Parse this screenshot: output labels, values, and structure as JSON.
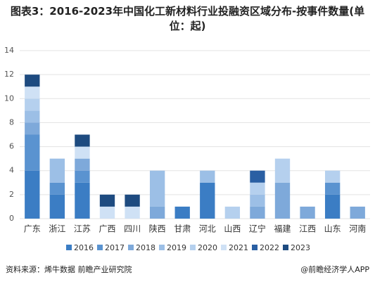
{
  "chart_data": {
    "type": "stacked_bar",
    "title": "图表3：2016-2023年中国化工新材料行业投融资区域分布-按事件数量(单位：起)",
    "source": "资料来源：烯牛数据 前瞻产业研究院",
    "credit": "@前瞻经济学人APP",
    "categories": [
      "广东",
      "浙江",
      "江苏",
      "广西",
      "四川",
      "陕西",
      "甘肃",
      "河北",
      "山西",
      "辽宁",
      "福建",
      "江西",
      "山东",
      "河南"
    ],
    "series": [
      {
        "name": "2016",
        "color": "#3b7dc4",
        "values": [
          4,
          2,
          3,
          0,
          0,
          0,
          1,
          3,
          0,
          0,
          0,
          0,
          2,
          0
        ]
      },
      {
        "name": "2017",
        "color": "#5a93d0",
        "values": [
          3,
          1,
          1,
          0,
          0,
          0,
          0,
          0,
          0,
          0,
          0,
          0,
          1,
          0
        ]
      },
      {
        "name": "2018",
        "color": "#7ea9da",
        "values": [
          1,
          0,
          1,
          0,
          0,
          1,
          0,
          0,
          0,
          1,
          3,
          1,
          0,
          1
        ]
      },
      {
        "name": "2019",
        "color": "#9cbfe6",
        "values": [
          1,
          2,
          0,
          0,
          0,
          3,
          0,
          1,
          0,
          1,
          0,
          0,
          0,
          0
        ]
      },
      {
        "name": "2020",
        "color": "#b5d0ee",
        "values": [
          1,
          0,
          0,
          0,
          0,
          0,
          0,
          0,
          1,
          1,
          2,
          0,
          1,
          0
        ]
      },
      {
        "name": "2021",
        "color": "#cfe1f5",
        "values": [
          1,
          0,
          1,
          1,
          1,
          0,
          0,
          0,
          0,
          0,
          0,
          0,
          0,
          0
        ]
      },
      {
        "name": "2022",
        "color": "#2a5fa3",
        "values": [
          0,
          0,
          0,
          0,
          0,
          0,
          0,
          0,
          0,
          1,
          0,
          0,
          0,
          0
        ]
      },
      {
        "name": "2023",
        "color": "#1e4b80",
        "values": [
          1,
          0,
          1,
          1,
          1,
          0,
          0,
          0,
          0,
          0,
          0,
          0,
          0,
          0
        ]
      }
    ],
    "ylim": [
      0,
      14
    ],
    "yticks": [
      0,
      2,
      4,
      6,
      8,
      10,
      12,
      14
    ],
    "grid": true,
    "legend": "bottom"
  }
}
